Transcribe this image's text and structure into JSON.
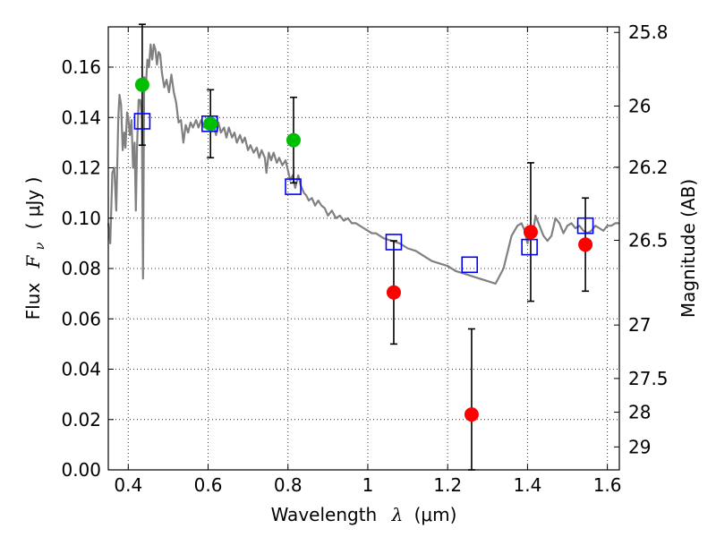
{
  "chart_data": {
    "type": "scatter",
    "xlabel": {
      "pre": "Wavelength",
      "sym": "λ",
      "post": "(μm)"
    },
    "ylabel": {
      "pre": "Flux",
      "sym": "F",
      "sub": "ν",
      "post": "( μJy )"
    },
    "y2label": "Magnitude (AB)",
    "xlim": [
      0.35,
      1.63
    ],
    "ylim": [
      0.0,
      0.176
    ],
    "grid": true,
    "x_ticks": [
      {
        "v": 0.4,
        "label": "0.4"
      },
      {
        "v": 0.6,
        "label": "0.6"
      },
      {
        "v": 0.8,
        "label": "0.8"
      },
      {
        "v": 1.0,
        "label": "1"
      },
      {
        "v": 1.2,
        "label": "1.2"
      },
      {
        "v": 1.4,
        "label": "1.4"
      },
      {
        "v": 1.6,
        "label": "1.6"
      }
    ],
    "y_ticks": [
      {
        "v": 0.0,
        "label": "0.00"
      },
      {
        "v": 0.02,
        "label": "0.02"
      },
      {
        "v": 0.04,
        "label": "0.04"
      },
      {
        "v": 0.06,
        "label": "0.06"
      },
      {
        "v": 0.08,
        "label": "0.08"
      },
      {
        "v": 0.1,
        "label": "0.10"
      },
      {
        "v": 0.12,
        "label": "0.12"
      },
      {
        "v": 0.14,
        "label": "0.14"
      },
      {
        "v": 0.16,
        "label": "0.16"
      }
    ],
    "y2_ticks": [
      {
        "mag": 25.8,
        "label": "25.8"
      },
      {
        "mag": 26.0,
        "label": "26"
      },
      {
        "mag": 26.2,
        "label": "26.2"
      },
      {
        "mag": 26.5,
        "label": "26.5"
      },
      {
        "mag": 27.0,
        "label": "27"
      },
      {
        "mag": 27.5,
        "label": "27.5"
      },
      {
        "mag": 28.0,
        "label": "28"
      },
      {
        "mag": 29.0,
        "label": "29"
      }
    ],
    "model_sed": {
      "color": "#808080",
      "points": [
        [
          0.35,
          0.098
        ],
        [
          0.355,
          0.09
        ],
        [
          0.36,
          0.118
        ],
        [
          0.365,
          0.12
        ],
        [
          0.37,
          0.103
        ],
        [
          0.375,
          0.14
        ],
        [
          0.378,
          0.149
        ],
        [
          0.382,
          0.145
        ],
        [
          0.386,
          0.127
        ],
        [
          0.39,
          0.134
        ],
        [
          0.393,
          0.128
        ],
        [
          0.397,
          0.142
        ],
        [
          0.4,
          0.14
        ],
        [
          0.404,
          0.133
        ],
        [
          0.408,
          0.139
        ],
        [
          0.412,
          0.12
        ],
        [
          0.416,
          0.13
        ],
        [
          0.419,
          0.103
        ],
        [
          0.422,
          0.128
        ],
        [
          0.426,
          0.147
        ],
        [
          0.43,
          0.147
        ],
        [
          0.434,
          0.14
        ],
        [
          0.437,
          0.076
        ],
        [
          0.44,
          0.156
        ],
        [
          0.444,
          0.152
        ],
        [
          0.448,
          0.163
        ],
        [
          0.452,
          0.16
        ],
        [
          0.456,
          0.169
        ],
        [
          0.46,
          0.163
        ],
        [
          0.464,
          0.169
        ],
        [
          0.468,
          0.167
        ],
        [
          0.472,
          0.161
        ],
        [
          0.476,
          0.166
        ],
        [
          0.48,
          0.165
        ],
        [
          0.484,
          0.158
        ],
        [
          0.49,
          0.152
        ],
        [
          0.496,
          0.155
        ],
        [
          0.502,
          0.15
        ],
        [
          0.508,
          0.157
        ],
        [
          0.514,
          0.15
        ],
        [
          0.52,
          0.146
        ],
        [
          0.526,
          0.138
        ],
        [
          0.532,
          0.139
        ],
        [
          0.538,
          0.13
        ],
        [
          0.544,
          0.137
        ],
        [
          0.55,
          0.134
        ],
        [
          0.556,
          0.138
        ],
        [
          0.562,
          0.136
        ],
        [
          0.57,
          0.139
        ],
        [
          0.576,
          0.136
        ],
        [
          0.583,
          0.139
        ],
        [
          0.59,
          0.136
        ],
        [
          0.598,
          0.139
        ],
        [
          0.606,
          0.135
        ],
        [
          0.614,
          0.137
        ],
        [
          0.62,
          0.133
        ],
        [
          0.626,
          0.138
        ],
        [
          0.632,
          0.134
        ],
        [
          0.64,
          0.136
        ],
        [
          0.646,
          0.132
        ],
        [
          0.652,
          0.136
        ],
        [
          0.66,
          0.132
        ],
        [
          0.666,
          0.134
        ],
        [
          0.672,
          0.13
        ],
        [
          0.68,
          0.133
        ],
        [
          0.686,
          0.13
        ],
        [
          0.692,
          0.132
        ],
        [
          0.7,
          0.127
        ],
        [
          0.706,
          0.129
        ],
        [
          0.714,
          0.126
        ],
        [
          0.722,
          0.128
        ],
        [
          0.728,
          0.124
        ],
        [
          0.734,
          0.127
        ],
        [
          0.742,
          0.124
        ],
        [
          0.746,
          0.118
        ],
        [
          0.752,
          0.126
        ],
        [
          0.758,
          0.123
        ],
        [
          0.764,
          0.126
        ],
        [
          0.772,
          0.122
        ],
        [
          0.778,
          0.124
        ],
        [
          0.786,
          0.121
        ],
        [
          0.794,
          0.123
        ],
        [
          0.8,
          0.119
        ],
        [
          0.806,
          0.115
        ],
        [
          0.812,
          0.117
        ],
        [
          0.818,
          0.112
        ],
        [
          0.826,
          0.117
        ],
        [
          0.832,
          0.113
        ],
        [
          0.84,
          0.11
        ],
        [
          0.846,
          0.109
        ],
        [
          0.852,
          0.107
        ],
        [
          0.86,
          0.108
        ],
        [
          0.868,
          0.105
        ],
        [
          0.876,
          0.107
        ],
        [
          0.884,
          0.105
        ],
        [
          0.892,
          0.104
        ],
        [
          0.9,
          0.101
        ],
        [
          0.91,
          0.103
        ],
        [
          0.92,
          0.1
        ],
        [
          0.93,
          0.101
        ],
        [
          0.94,
          0.099
        ],
        [
          0.95,
          0.1
        ],
        [
          0.96,
          0.098
        ],
        [
          0.97,
          0.098
        ],
        [
          0.98,
          0.097
        ],
        [
          0.99,
          0.096
        ],
        [
          1.0,
          0.095
        ],
        [
          1.01,
          0.094
        ],
        [
          1.02,
          0.094
        ],
        [
          1.03,
          0.093
        ],
        [
          1.04,
          0.092
        ],
        [
          1.06,
          0.091
        ],
        [
          1.08,
          0.09
        ],
        [
          1.1,
          0.088
        ],
        [
          1.12,
          0.087
        ],
        [
          1.14,
          0.085
        ],
        [
          1.16,
          0.083
        ],
        [
          1.18,
          0.082
        ],
        [
          1.2,
          0.081
        ],
        [
          1.22,
          0.079
        ],
        [
          1.24,
          0.078
        ],
        [
          1.26,
          0.077
        ],
        [
          1.28,
          0.076
        ],
        [
          1.3,
          0.075
        ],
        [
          1.32,
          0.074
        ],
        [
          1.34,
          0.08
        ],
        [
          1.36,
          0.093
        ],
        [
          1.375,
          0.097
        ],
        [
          1.385,
          0.098
        ],
        [
          1.393,
          0.095
        ],
        [
          1.4,
          0.09
        ],
        [
          1.406,
          0.094
        ],
        [
          1.412,
          0.092
        ],
        [
          1.42,
          0.101
        ],
        [
          1.43,
          0.097
        ],
        [
          1.44,
          0.093
        ],
        [
          1.45,
          0.091
        ],
        [
          1.46,
          0.093
        ],
        [
          1.47,
          0.1
        ],
        [
          1.48,
          0.098
        ],
        [
          1.49,
          0.094
        ],
        [
          1.5,
          0.097
        ],
        [
          1.51,
          0.098
        ],
        [
          1.52,
          0.096
        ],
        [
          1.53,
          0.097
        ],
        [
          1.54,
          0.095
        ],
        [
          1.55,
          0.094
        ],
        [
          1.56,
          0.095
        ],
        [
          1.57,
          0.097
        ],
        [
          1.58,
          0.096
        ],
        [
          1.59,
          0.095
        ],
        [
          1.6,
          0.097
        ],
        [
          1.61,
          0.097
        ],
        [
          1.62,
          0.098
        ],
        [
          1.63,
          0.098
        ]
      ]
    },
    "series": [
      {
        "marker": "square-open",
        "color": "#0000ff",
        "points": [
          {
            "x": 0.435,
            "y": 0.1385
          },
          {
            "x": 0.604,
            "y": 0.1375
          },
          {
            "x": 0.813,
            "y": 0.1125
          },
          {
            "x": 1.065,
            "y": 0.0905
          },
          {
            "x": 1.255,
            "y": 0.0815
          },
          {
            "x": 1.405,
            "y": 0.0885
          },
          {
            "x": 1.545,
            "y": 0.097
          }
        ]
      },
      {
        "marker": "circle",
        "color": "#00bf00",
        "points": [
          {
            "x": 0.435,
            "y": 0.153,
            "err": 0.024
          },
          {
            "x": 0.606,
            "y": 0.1375,
            "err": 0.0135
          },
          {
            "x": 0.814,
            "y": 0.131,
            "err": 0.017
          }
        ]
      },
      {
        "marker": "circle",
        "color": "#ff0000",
        "points": [
          {
            "x": 1.065,
            "y": 0.0705,
            "err": 0.0205
          },
          {
            "x": 1.26,
            "y": 0.022,
            "err": 0.034
          },
          {
            "x": 1.408,
            "y": 0.0945,
            "err": 0.0275
          },
          {
            "x": 1.545,
            "y": 0.0895,
            "err": 0.0185
          }
        ]
      }
    ]
  }
}
